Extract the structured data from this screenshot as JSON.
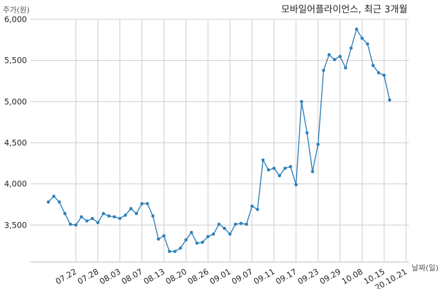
{
  "chart_data": {
    "type": "line",
    "title": "모바일어플라이언스, 최근 3개월",
    "ylabel": "주가(원)",
    "xlabel": "날짜(일)",
    "ylim": [
      3050,
      6000
    ],
    "yticks": [
      3500,
      4000,
      4500,
      5000,
      5500,
      6000
    ],
    "ytick_labels": [
      "3,500",
      "4,000",
      "4,500",
      "5,000",
      "5,500",
      "6,000"
    ],
    "xtick_labels": [
      "07.22",
      "07.28",
      "08.03",
      "08.07",
      "08.13",
      "08.20",
      "08.26",
      "09.01",
      "09.07",
      "09.11",
      "09.17",
      "09.23",
      "09.29",
      "10.08",
      "10.15",
      "20.10.21"
    ],
    "xtick_index": [
      5,
      9,
      13,
      17,
      21,
      25,
      29,
      33,
      37,
      41,
      45,
      49,
      53,
      57,
      61,
      65
    ],
    "grid": true,
    "line_color": "#2e7fb8",
    "series": [
      {
        "values": [
          3780,
          3850,
          3780,
          3640,
          3510,
          3500,
          3600,
          3550,
          3580,
          3530,
          3640,
          3610,
          3600,
          3580,
          3620,
          3700,
          3640,
          3760,
          3760,
          3610,
          3330,
          3370,
          3180,
          3180,
          3220,
          3320,
          3410,
          3280,
          3290,
          3360,
          3390,
          3510,
          3460,
          3390,
          3510,
          3520,
          3510,
          3730,
          3690,
          4290,
          4170,
          4190,
          4100,
          4190,
          4210,
          3990,
          5000,
          4620,
          4150,
          4480,
          5380,
          5570,
          5510,
          5550,
          5410,
          5650,
          5880,
          5770,
          5700,
          5440,
          5350,
          5320,
          5020
        ]
      }
    ]
  }
}
